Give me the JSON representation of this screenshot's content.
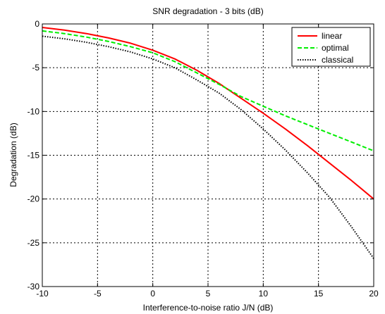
{
  "chart_data": {
    "type": "line",
    "title": "SNR degradation - 3 bits (dB)",
    "xlabel": "Interference-to-noise ratio J/N (dB)",
    "ylabel": "Degradation (dB)",
    "xlim": [
      -10,
      20
    ],
    "ylim": [
      -30,
      0
    ],
    "xticks": [
      -10,
      -5,
      0,
      5,
      10,
      15,
      20
    ],
    "yticks": [
      0,
      -5,
      -10,
      -15,
      -20,
      -25,
      -30
    ],
    "grid": true,
    "legend_position": "top-right",
    "series": [
      {
        "name": "linear",
        "color": "#ff0000",
        "style": "solid",
        "x": [
          -10,
          -8,
          -6,
          -4,
          -2,
          0,
          2,
          4,
          6,
          8,
          10,
          12,
          14,
          16,
          18,
          20
        ],
        "y": [
          -0.4,
          -0.7,
          -1.1,
          -1.6,
          -2.2,
          -3.0,
          -4.0,
          -5.3,
          -6.8,
          -8.5,
          -10.2,
          -12.0,
          -13.9,
          -15.9,
          -17.9,
          -20.0
        ]
      },
      {
        "name": "optimal",
        "color": "#00ee00",
        "style": "dashed",
        "x": [
          -10,
          -8,
          -6,
          -4,
          -2,
          0,
          2,
          4,
          6,
          8,
          10,
          12,
          14,
          16,
          18,
          20
        ],
        "y": [
          -0.8,
          -1.1,
          -1.5,
          -2.0,
          -2.6,
          -3.3,
          -4.3,
          -5.6,
          -6.9,
          -8.3,
          -9.4,
          -10.5,
          -11.5,
          -12.5,
          -13.5,
          -14.5
        ]
      },
      {
        "name": "classical",
        "color": "#000000",
        "style": "dotted",
        "x": [
          -10,
          -8,
          -6,
          -4,
          -2,
          0,
          2,
          4,
          6,
          8,
          10,
          12,
          14,
          16,
          18,
          20
        ],
        "y": [
          -1.4,
          -1.7,
          -2.1,
          -2.6,
          -3.2,
          -4.0,
          -5.0,
          -6.4,
          -7.9,
          -9.8,
          -12.0,
          -14.4,
          -17.0,
          -19.8,
          -23.2,
          -26.8
        ]
      }
    ]
  }
}
